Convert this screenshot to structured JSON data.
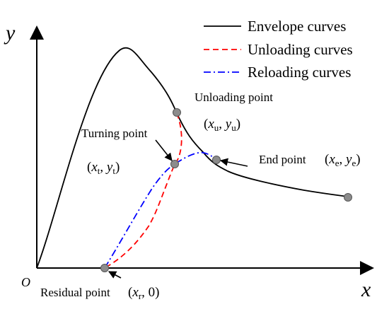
{
  "axes": {
    "x_label": "x",
    "y_label": "y",
    "origin_label": "O"
  },
  "legend": {
    "items": [
      {
        "label": "Envelope curves",
        "style": "solid",
        "color": "#000000"
      },
      {
        "label": "Unloading curves",
        "style": "dashed",
        "color": "#ff0000"
      },
      {
        "label": "Reloading curves",
        "style": "dash-dot",
        "color": "#0000ff"
      }
    ]
  },
  "annotations": {
    "unloading_point": {
      "label": "Unloading point",
      "coord": {
        "x_var": "x",
        "x_sub": "u",
        "y_var": "y",
        "y_sub": "u"
      }
    },
    "turning_point": {
      "label": "Turning point",
      "coord": {
        "x_var": "x",
        "x_sub": "t",
        "y_var": "y",
        "y_sub": "t"
      }
    },
    "end_point": {
      "label": "End point",
      "coord": {
        "x_var": "x",
        "x_sub": "e",
        "y_var": "y",
        "y_sub": "e"
      }
    },
    "residual_point": {
      "label": "Residual point",
      "coord": {
        "x_var": "x",
        "x_sub": "r",
        "y_value": "0"
      }
    }
  },
  "colors": {
    "axis": "#000000",
    "envelope": "#000000",
    "unloading": "#ff0000",
    "reloading": "#0000ff",
    "marker_fill": "#888888"
  }
}
